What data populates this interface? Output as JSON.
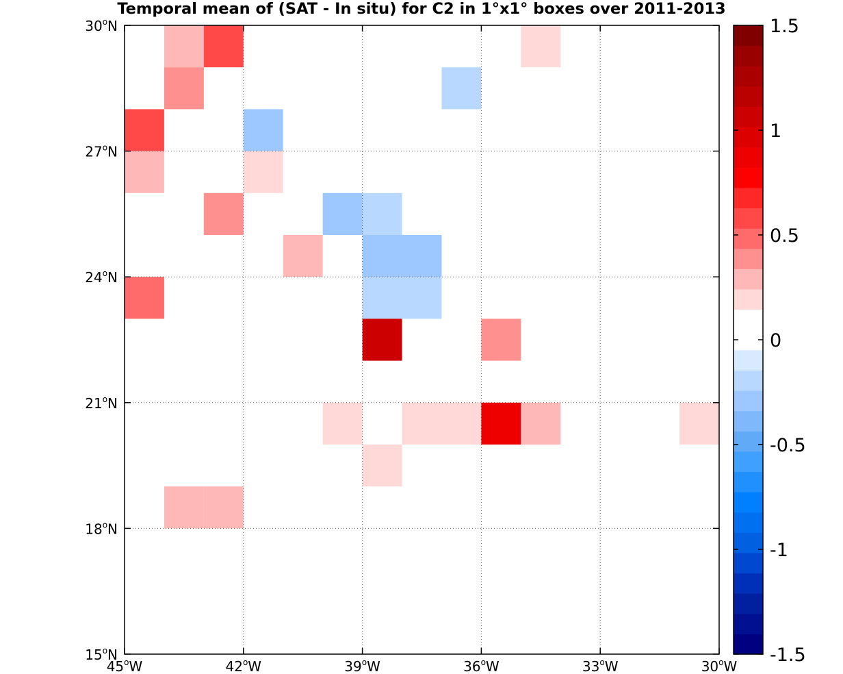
{
  "chart_data": {
    "type": "heatmap",
    "title": "Temporal mean of (SAT - In situ) for C2 in 1°x1° boxes over 2011-2013",
    "xlim": [
      -45,
      -30
    ],
    "ylim": [
      15,
      30
    ],
    "x_ticks": [
      -45,
      -42,
      -39,
      -36,
      -33,
      -30
    ],
    "y_ticks": [
      15,
      18,
      21,
      24,
      27,
      30
    ],
    "x_tick_labels": [
      "45",
      "42",
      "39",
      "36",
      "33",
      "30"
    ],
    "x_tick_suffix": "W",
    "y_tick_labels": [
      "15",
      "18",
      "21",
      "24",
      "27",
      "30"
    ],
    "y_tick_suffix": "N",
    "degree_symbol": "o",
    "grid": "dotted",
    "colorbar": {
      "min": -1.5,
      "max": 1.5,
      "ticks": [
        -1.5,
        -1,
        -0.5,
        0,
        0.5,
        1,
        1.5
      ],
      "tick_labels": [
        "-1.5",
        "-1",
        "-0.5",
        "0",
        "0.5",
        "1",
        "1.5"
      ],
      "placement": "right",
      "colors": [
        "#000080",
        "#001090",
        "#0020a0",
        "#0030b8",
        "#0048d0",
        "#0060e0",
        "#0070f0",
        "#0080ff",
        "#2090ff",
        "#40a0ff",
        "#60aaf8",
        "#80b8fc",
        "#9cc8ff",
        "#b8d8ff",
        "#d8eaff",
        "#ffffff",
        "#ffffff",
        "#ffd8d8",
        "#ffb8b8",
        "#ff9090",
        "#ff6a6a",
        "#ff4848",
        "#ff2828",
        "#ff0000",
        "#ee0000",
        "#dd0000",
        "#cc0000",
        "#bb0000",
        "#aa0000",
        "#990000",
        "#800000"
      ]
    },
    "cells": [
      {
        "lon": -44,
        "lat": 29,
        "value": 0.25
      },
      {
        "lon": -43,
        "lat": 29,
        "value": 0.55
      },
      {
        "lon": -35,
        "lat": 29,
        "value": 0.15
      },
      {
        "lon": -44,
        "lat": 28,
        "value": 0.4
      },
      {
        "lon": -37,
        "lat": 28,
        "value": -0.15
      },
      {
        "lon": -45,
        "lat": 27,
        "value": 0.55
      },
      {
        "lon": -42,
        "lat": 27,
        "value": -0.25
      },
      {
        "lon": -45,
        "lat": 26,
        "value": 0.25
      },
      {
        "lon": -42,
        "lat": 26,
        "value": 0.15
      },
      {
        "lon": -43,
        "lat": 25,
        "value": 0.4
      },
      {
        "lon": -40,
        "lat": 25,
        "value": -0.25
      },
      {
        "lon": -39,
        "lat": 25,
        "value": -0.15
      },
      {
        "lon": -41,
        "lat": 24,
        "value": 0.25
      },
      {
        "lon": -39,
        "lat": 24,
        "value": -0.25
      },
      {
        "lon": -38,
        "lat": 24,
        "value": -0.25
      },
      {
        "lon": -45,
        "lat": 23,
        "value": 0.45
      },
      {
        "lon": -39,
        "lat": 23,
        "value": -0.15
      },
      {
        "lon": -38,
        "lat": 23,
        "value": -0.15
      },
      {
        "lon": -39,
        "lat": 22,
        "value": 1.05
      },
      {
        "lon": -36,
        "lat": 22,
        "value": 0.4
      },
      {
        "lon": -40,
        "lat": 20,
        "value": 0.15
      },
      {
        "lon": -38,
        "lat": 20,
        "value": 0.15
      },
      {
        "lon": -37,
        "lat": 20,
        "value": 0.15
      },
      {
        "lon": -36,
        "lat": 20,
        "value": 0.9
      },
      {
        "lon": -35,
        "lat": 20,
        "value": 0.25
      },
      {
        "lon": -31,
        "lat": 20,
        "value": 0.15
      },
      {
        "lon": -39,
        "lat": 19,
        "value": 0.15
      },
      {
        "lon": -44,
        "lat": 18,
        "value": 0.25
      },
      {
        "lon": -43,
        "lat": 18,
        "value": 0.25
      }
    ]
  }
}
